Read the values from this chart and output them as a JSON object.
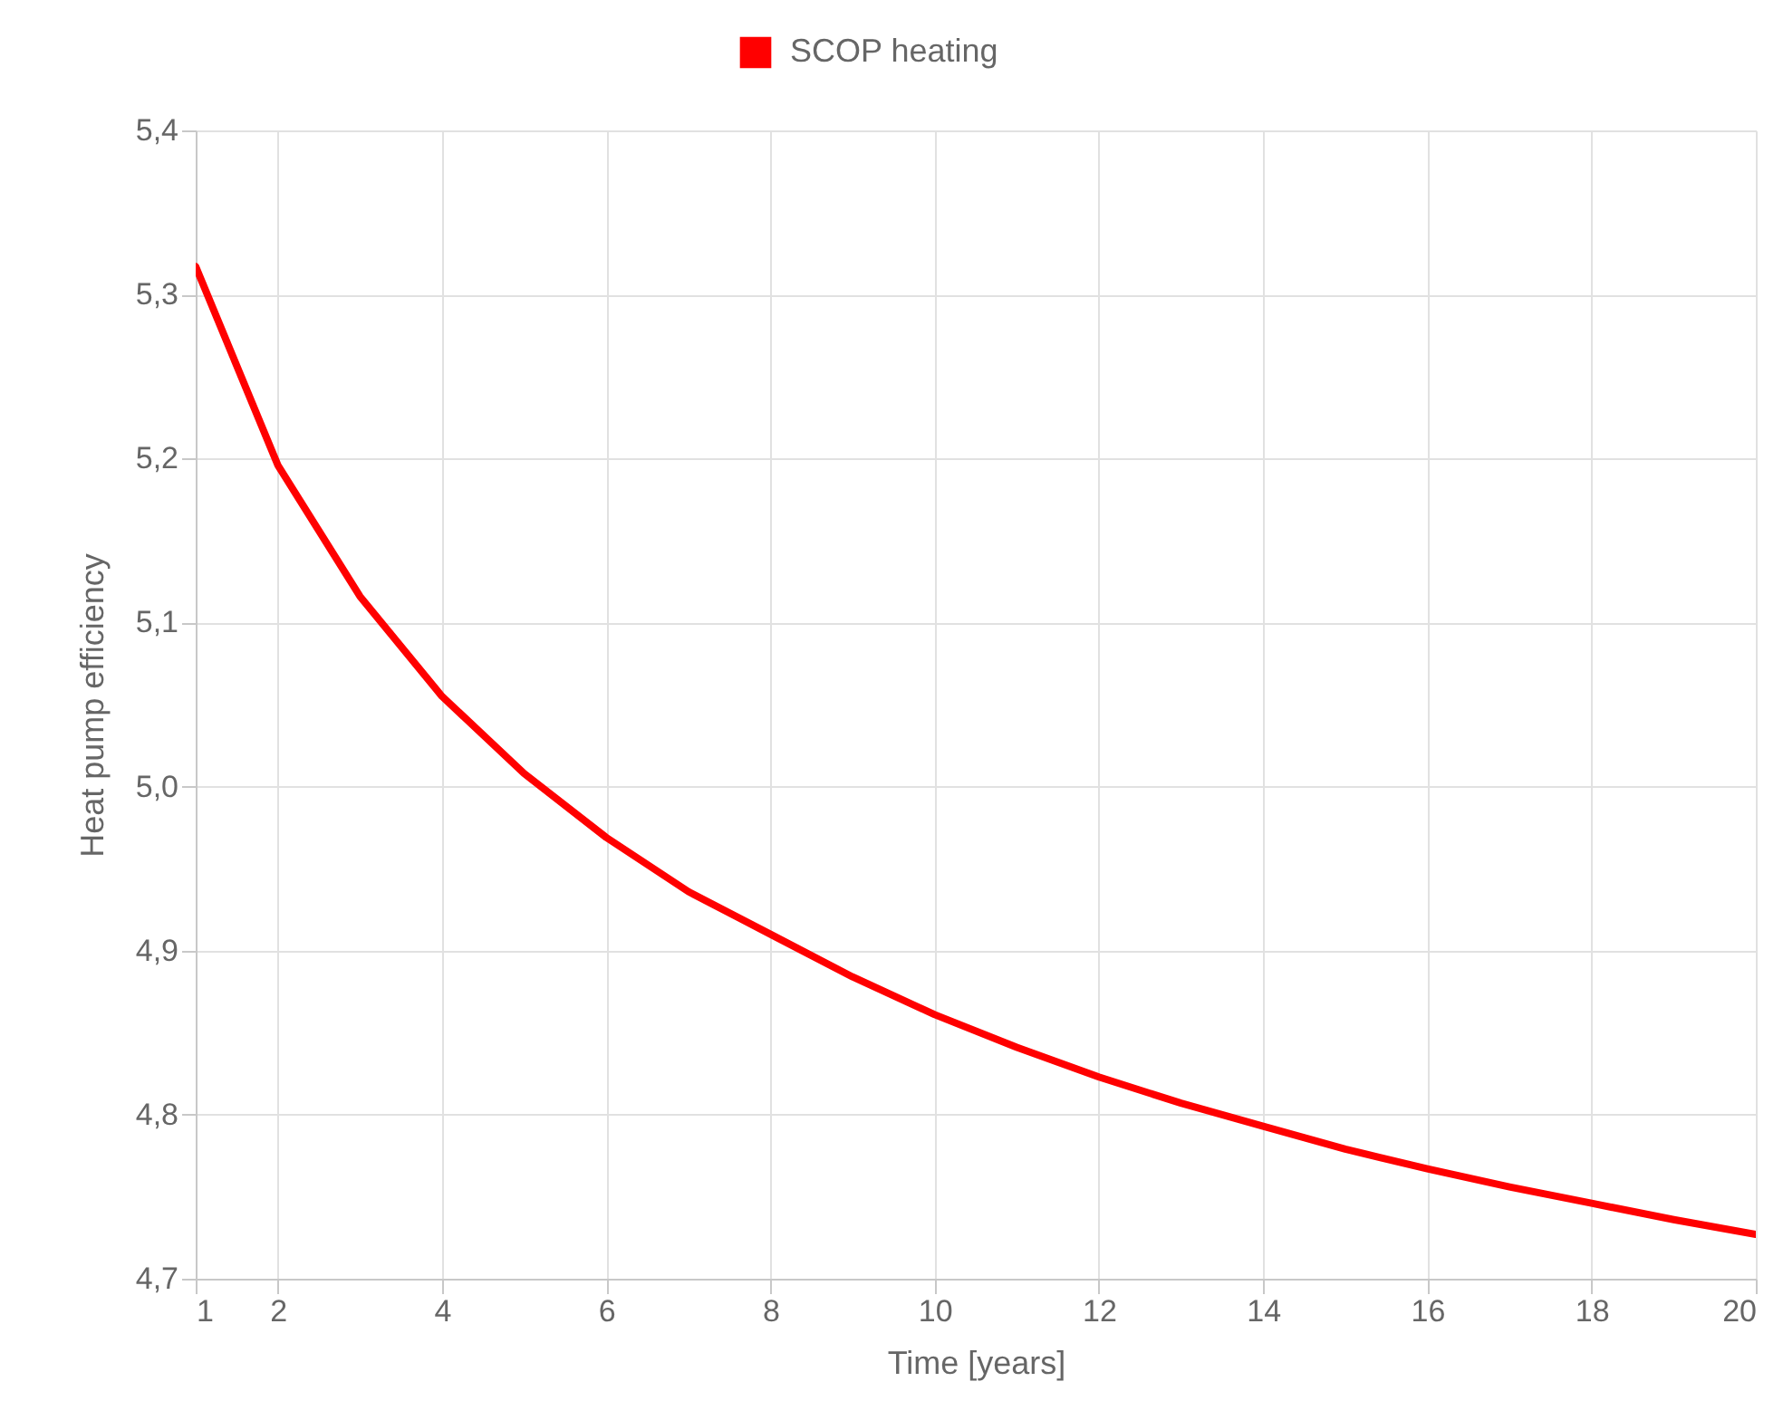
{
  "chart_data": {
    "type": "line",
    "xlabel": "Time [years]",
    "ylabel": "Heat pump efficiency",
    "x": [
      1,
      2,
      3,
      4,
      5,
      6,
      7,
      8,
      9,
      10,
      11,
      12,
      13,
      14,
      15,
      16,
      17,
      18,
      19,
      20
    ],
    "series": [
      {
        "name": "SCOP heating",
        "color": "#ff0000",
        "values": [
          5.317,
          5.196,
          5.116,
          5.055,
          5.008,
          4.969,
          4.936,
          4.91,
          4.884,
          4.861,
          4.841,
          4.823,
          4.807,
          4.793,
          4.779,
          4.767,
          4.756,
          4.746,
          4.736,
          4.727
        ]
      }
    ],
    "xlim": [
      1,
      20
    ],
    "xticks": [
      1,
      2,
      4,
      6,
      8,
      10,
      12,
      14,
      16,
      18,
      20
    ],
    "ylim": [
      4.7,
      5.4
    ],
    "yticks": [
      {
        "value": 4.7,
        "label": "4,7"
      },
      {
        "value": 4.8,
        "label": "4,8"
      },
      {
        "value": 4.9,
        "label": "4,9"
      },
      {
        "value": 5.0,
        "label": "5,0"
      },
      {
        "value": 5.1,
        "label": "5,1"
      },
      {
        "value": 5.2,
        "label": "5,2"
      },
      {
        "value": 5.3,
        "label": "5,3"
      },
      {
        "value": 5.4,
        "label": "5,4"
      }
    ],
    "grid": true,
    "legend": "top",
    "marker": "none",
    "line_style": "solid"
  }
}
